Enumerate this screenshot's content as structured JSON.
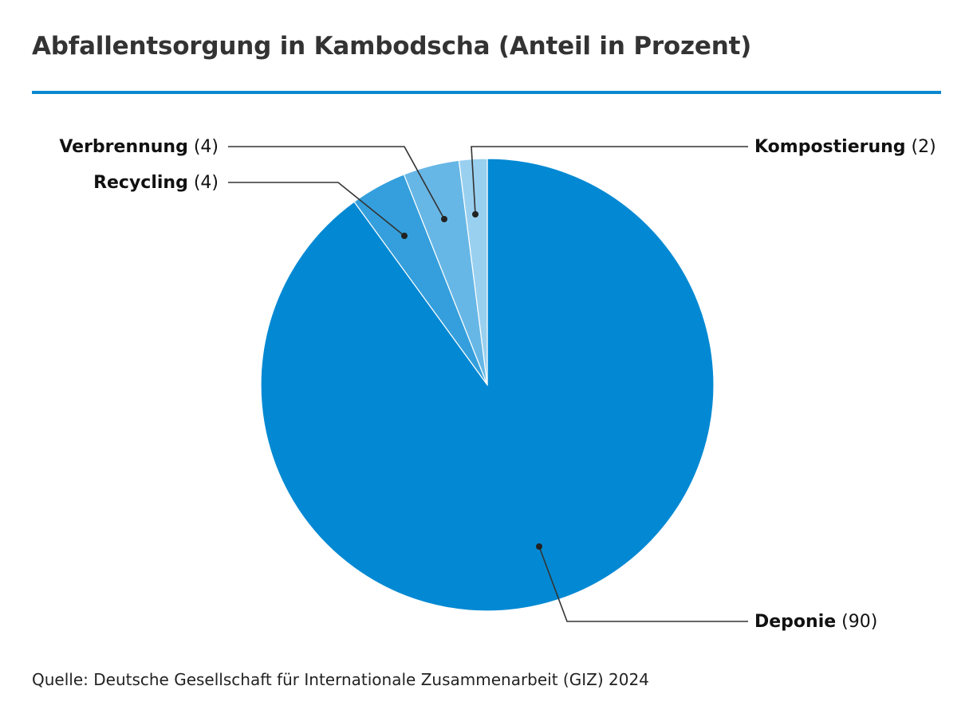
{
  "title": "Abfallentsorgung in Kambodscha (Anteil in Prozent)",
  "source": "Quelle: Deutsche Gesellschaft für Internationale Zusammenarbeit (GIZ) 2024",
  "colors": {
    "accent_rule": "#0a88d0",
    "leader": "#333333"
  },
  "chart_data": {
    "type": "pie",
    "title": "Abfallentsorgung in Kambodscha (Anteil in Prozent)",
    "start": "12 o'clock, clockwise",
    "slices": [
      {
        "label": "Deponie",
        "value": 90,
        "value_text": "(90)",
        "color": "#0389d3"
      },
      {
        "label": "Recycling",
        "value": 4,
        "value_text": "(4)",
        "color": "#349fdc"
      },
      {
        "label": "Verbrennung",
        "value": 4,
        "value_text": "(4)",
        "color": "#67b7e6"
      },
      {
        "label": "Kompostierung",
        "value": 2,
        "value_text": "(2)",
        "color": "#9ad0ef"
      }
    ]
  }
}
